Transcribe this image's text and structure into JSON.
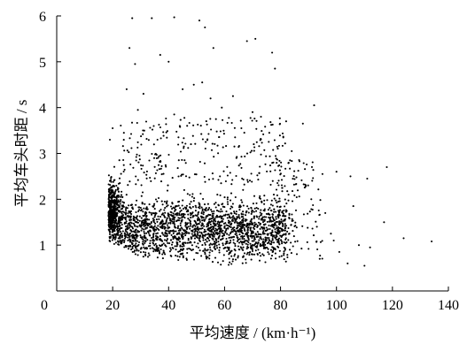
{
  "chart_data": {
    "type": "scatter",
    "title": "",
    "xlabel": "平均速度 / (km·h⁻¹)",
    "ylabel": "平均车头时距 / s",
    "xlim": [
      0,
      140
    ],
    "ylim": [
      0,
      6
    ],
    "xticks": [
      20,
      40,
      60,
      80,
      100,
      120,
      140
    ],
    "yticks": [
      1,
      2,
      3,
      4,
      5,
      6
    ],
    "origin_label": "0",
    "grid": false,
    "marker_color": "#000000",
    "series": [
      {
        "points": [
          [
            27,
            5.95
          ],
          [
            34,
            5.95
          ],
          [
            42,
            5.97
          ],
          [
            51,
            5.9
          ],
          [
            53,
            5.75
          ],
          [
            68,
            5.45
          ],
          [
            71,
            5.5
          ],
          [
            77,
            5.2
          ],
          [
            26,
            5.3
          ],
          [
            56,
            5.3
          ],
          [
            37,
            5.15
          ],
          [
            40,
            5.0
          ],
          [
            28,
            4.95
          ],
          [
            78,
            4.85
          ],
          [
            49,
            4.5
          ],
          [
            52,
            4.55
          ],
          [
            45,
            4.4
          ],
          [
            25,
            4.4
          ],
          [
            31,
            4.3
          ],
          [
            63,
            4.25
          ],
          [
            55,
            4.2
          ],
          [
            29,
            3.95
          ],
          [
            42,
            3.85
          ],
          [
            70,
            3.9
          ],
          [
            73,
            3.8
          ],
          [
            82,
            3.7
          ],
          [
            92,
            4.05
          ],
          [
            88,
            3.65
          ],
          [
            19,
            3.3
          ],
          [
            20,
            3.55
          ],
          [
            24,
            3.45
          ],
          [
            36,
            3.3
          ],
          [
            48,
            3.2
          ],
          [
            66,
            3.55
          ],
          [
            76,
            3.45
          ],
          [
            84,
            3.05
          ],
          [
            95,
            2.55
          ],
          [
            100,
            2.6
          ],
          [
            105,
            2.5
          ],
          [
            111,
            2.45
          ],
          [
            118,
            2.7
          ],
          [
            106,
            1.85
          ],
          [
            117,
            1.5
          ],
          [
            124,
            1.15
          ],
          [
            134,
            1.08
          ],
          [
            110,
            0.55
          ],
          [
            104,
            0.6
          ],
          [
            98,
            1.25
          ],
          [
            93,
            1.4
          ],
          [
            96,
            1.7
          ],
          [
            91,
            2.0
          ],
          [
            99,
            1.1
          ],
          [
            108,
            1.0
          ],
          [
            101,
            0.85
          ],
          [
            94,
            0.7
          ],
          [
            112,
            0.95
          ],
          [
            63,
            1.9
          ],
          [
            59,
            4.0
          ],
          [
            44,
            3.6
          ],
          [
            81,
            3.35
          ]
        ]
      }
    ]
  }
}
